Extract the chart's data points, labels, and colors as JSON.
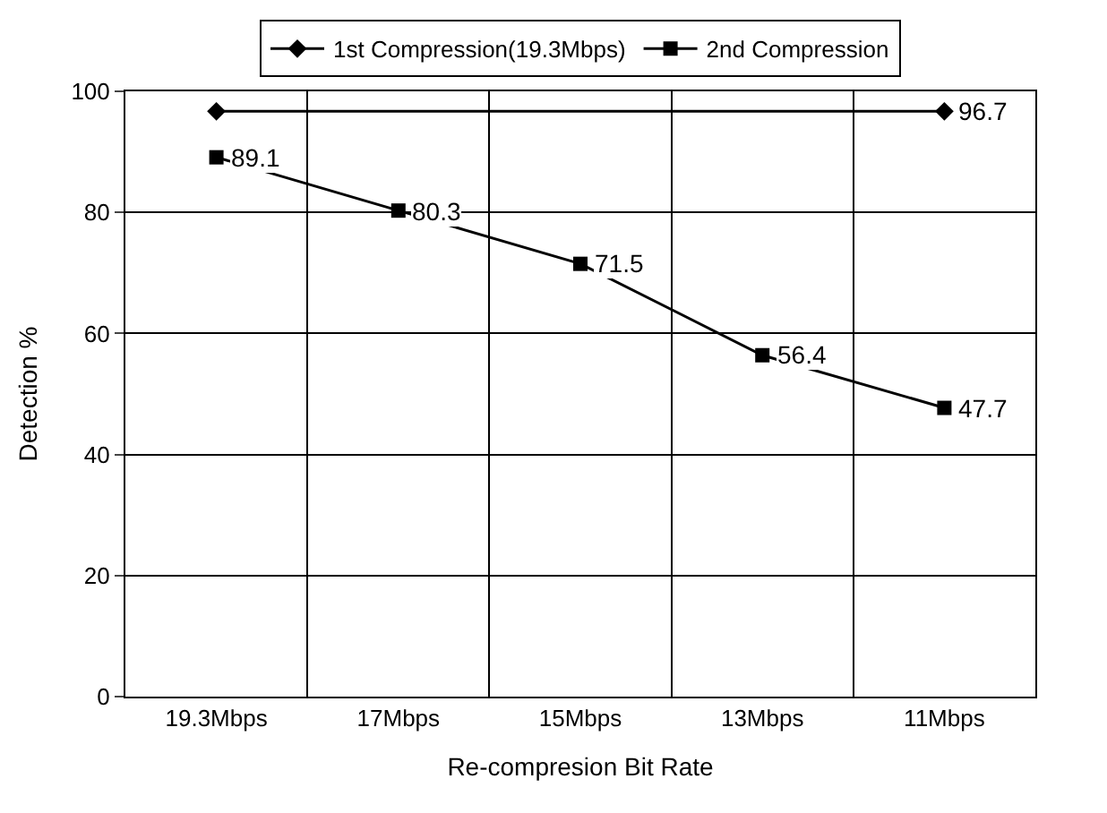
{
  "chart_data": {
    "type": "line",
    "xlabel": "Re-compresion Bit Rate",
    "ylabel": "Detection %",
    "categories": [
      "19.3Mbps",
      "17Mbps",
      "15Mbps",
      "13Mbps",
      "11Mbps"
    ],
    "series": [
      {
        "name": "1st Compression(19.3Mbps)",
        "color": "#000000",
        "marker": "diamond",
        "x": [
          "19.3Mbps",
          "11Mbps"
        ],
        "values": [
          96.7,
          96.7
        ],
        "value_labels": [
          null,
          "96.7"
        ]
      },
      {
        "name": "2nd Compression",
        "color": "#000000",
        "marker": "square",
        "values": [
          89.1,
          80.3,
          71.5,
          56.4,
          47.7
        ],
        "value_labels": [
          "89.1",
          "80.3",
          "71.5",
          "56.4",
          "47.7"
        ]
      }
    ],
    "ylim": [
      0,
      100
    ],
    "yticks": [
      0,
      20,
      40,
      60,
      80,
      100
    ],
    "grid": true,
    "legend": "top",
    "line_style": "solid"
  }
}
